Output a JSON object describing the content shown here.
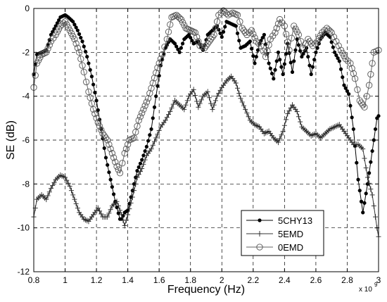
{
  "chart_data": {
    "type": "line",
    "xlabel": "Frequency (Hz)",
    "ylabel": "SE (dB)",
    "x_exponent_label": "x 10",
    "x_exponent_power": "9",
    "xlim": [
      0.8,
      3.0
    ],
    "ylim": [
      -12,
      0
    ],
    "x_scale": 1000000000.0,
    "grid": true,
    "legend_position": "bottom-right",
    "x_ticks": [
      "0.8",
      "1",
      "1.2",
      "1.4",
      "1.6",
      "1.8",
      "2",
      "2.2",
      "2.4",
      "2.6",
      "2.8",
      "3"
    ],
    "y_ticks": [
      "0",
      "-2",
      "-4",
      "-6",
      "-8",
      "-10",
      "-12"
    ],
    "series": [
      {
        "name": "5CHY13",
        "marker": "dot",
        "x": [
          0.8,
          0.82,
          0.85,
          0.88,
          0.91,
          0.94,
          0.97,
          1.0,
          1.02,
          1.05,
          1.08,
          1.11,
          1.14,
          1.17,
          1.2,
          1.23,
          1.26,
          1.29,
          1.32,
          1.35,
          1.36,
          1.38,
          1.4,
          1.43,
          1.46,
          1.49,
          1.52,
          1.55,
          1.58,
          1.61,
          1.64,
          1.67,
          1.7,
          1.73,
          1.76,
          1.79,
          1.82,
          1.85,
          1.88,
          1.91,
          1.94,
          1.97,
          2.0,
          2.03,
          2.06,
          2.09,
          2.12,
          2.15,
          2.18,
          2.21,
          2.24,
          2.27,
          2.3,
          2.33,
          2.36,
          2.39,
          2.42,
          2.45,
          2.48,
          2.51,
          2.54,
          2.57,
          2.6,
          2.63,
          2.66,
          2.69,
          2.72,
          2.75,
          2.78,
          2.81,
          2.84,
          2.87,
          2.9,
          2.93,
          2.96,
          2.99,
          3.0
        ],
        "y": [
          -3.0,
          -2.1,
          -2.0,
          -1.9,
          -1.2,
          -0.8,
          -0.4,
          -0.3,
          -0.4,
          -0.6,
          -1.0,
          -1.5,
          -2.2,
          -3.1,
          -4.2,
          -5.5,
          -6.8,
          -7.8,
          -8.8,
          -9.6,
          -9.6,
          -9.3,
          -9.2,
          -8.3,
          -7.4,
          -6.9,
          -6.3,
          -5.5,
          -4.0,
          -2.6,
          -1.8,
          -1.4,
          -1.6,
          -2.0,
          -1.4,
          -1.2,
          -1.6,
          -1.5,
          -1.9,
          -1.2,
          -1.0,
          -0.8,
          -1.3,
          -0.6,
          -0.7,
          -0.8,
          -1.8,
          -1.7,
          -1.5,
          -2.5,
          -1.6,
          -1.2,
          -2.5,
          -3.2,
          -2.0,
          -3.0,
          -1.6,
          -2.9,
          -1.4,
          -2.2,
          -1.8,
          -3.0,
          -2.0,
          -1.4,
          -1.1,
          -1.3,
          -2.0,
          -2.4,
          -3.5,
          -3.9,
          -5.5,
          -7.8,
          -9.3,
          -8.0,
          -6.5,
          -5.0,
          -4.9
        ]
      },
      {
        "name": "5EMD",
        "marker": "plus",
        "x": [
          0.8,
          0.82,
          0.85,
          0.88,
          0.91,
          0.94,
          0.97,
          1.0,
          1.03,
          1.06,
          1.09,
          1.12,
          1.15,
          1.18,
          1.21,
          1.24,
          1.27,
          1.3,
          1.33,
          1.36,
          1.38,
          1.4,
          1.43,
          1.46,
          1.49,
          1.52,
          1.55,
          1.58,
          1.61,
          1.64,
          1.67,
          1.7,
          1.73,
          1.76,
          1.79,
          1.82,
          1.85,
          1.88,
          1.91,
          1.94,
          1.97,
          2.0,
          2.03,
          2.06,
          2.09,
          2.12,
          2.15,
          2.18,
          2.21,
          2.24,
          2.27,
          2.3,
          2.33,
          2.36,
          2.39,
          2.42,
          2.45,
          2.48,
          2.51,
          2.54,
          2.57,
          2.6,
          2.63,
          2.66,
          2.69,
          2.72,
          2.75,
          2.78,
          2.81,
          2.84,
          2.87,
          2.9,
          2.93,
          2.96,
          2.99,
          3.0
        ],
        "y": [
          -9.5,
          -8.7,
          -8.5,
          -8.7,
          -8.2,
          -7.8,
          -7.6,
          -7.7,
          -8.1,
          -8.7,
          -9.3,
          -9.6,
          -9.7,
          -9.4,
          -9.1,
          -9.5,
          -9.5,
          -9.0,
          -8.8,
          -9.4,
          -9.9,
          -9.4,
          -8.6,
          -7.7,
          -7.3,
          -6.7,
          -6.4,
          -5.9,
          -5.4,
          -5.1,
          -4.7,
          -4.2,
          -4.4,
          -4.6,
          -4.0,
          -3.7,
          -4.5,
          -4.0,
          -3.8,
          -4.6,
          -4.0,
          -3.6,
          -3.3,
          -3.1,
          -3.4,
          -4.1,
          -4.6,
          -5.1,
          -5.3,
          -5.4,
          -5.7,
          -5.6,
          -5.9,
          -6.1,
          -5.6,
          -4.8,
          -4.4,
          -4.7,
          -5.4,
          -5.6,
          -5.8,
          -5.7,
          -5.9,
          -5.7,
          -5.5,
          -5.4,
          -5.3,
          -5.6,
          -5.9,
          -6.2,
          -6.2,
          -6.4,
          -7.7,
          -8.5,
          -10.0,
          -10.4
        ]
      },
      {
        "name": "0EMD",
        "marker": "circle",
        "x": [
          0.8,
          0.82,
          0.85,
          0.88,
          0.91,
          0.94,
          0.97,
          1.0,
          1.03,
          1.06,
          1.09,
          1.12,
          1.15,
          1.18,
          1.21,
          1.24,
          1.27,
          1.3,
          1.33,
          1.35,
          1.38,
          1.41,
          1.44,
          1.47,
          1.5,
          1.53,
          1.56,
          1.59,
          1.62,
          1.65,
          1.68,
          1.71,
          1.74,
          1.77,
          1.8,
          1.83,
          1.86,
          1.89,
          1.92,
          1.95,
          1.98,
          2.01,
          2.04,
          2.07,
          2.1,
          2.13,
          2.16,
          2.19,
          2.22,
          2.25,
          2.28,
          2.31,
          2.34,
          2.37,
          2.4,
          2.43,
          2.46,
          2.49,
          2.52,
          2.55,
          2.58,
          2.61,
          2.64,
          2.67,
          2.7,
          2.73,
          2.76,
          2.79,
          2.82,
          2.85,
          2.88,
          2.91,
          2.94,
          2.97,
          3.0
        ],
        "y": [
          -3.6,
          -2.5,
          -2.1,
          -2.0,
          -1.5,
          -1.2,
          -0.8,
          -0.6,
          -1.0,
          -1.4,
          -2.0,
          -2.9,
          -3.8,
          -4.6,
          -5.2,
          -5.7,
          -6.0,
          -6.6,
          -7.2,
          -7.5,
          -6.6,
          -6.0,
          -5.9,
          -5.1,
          -4.6,
          -4.1,
          -3.4,
          -2.7,
          -2.1,
          -1.4,
          -0.4,
          -0.3,
          -0.5,
          -0.9,
          -1.0,
          -1.1,
          -1.7,
          -1.8,
          -1.5,
          -1.2,
          -0.3,
          -0.1,
          -0.3,
          -0.2,
          -0.3,
          -0.9,
          -1.2,
          -1.0,
          -1.5,
          -1.7,
          -2.2,
          -1.4,
          -1.1,
          -0.5,
          -0.8,
          -1.9,
          -0.8,
          -1.2,
          -1.8,
          -1.4,
          -1.7,
          -1.5,
          -1.1,
          -0.9,
          -1.1,
          -1.5,
          -1.9,
          -2.3,
          -2.5,
          -3.2,
          -4.2,
          -4.5,
          -3.5,
          -2.0,
          -1.9
        ]
      }
    ]
  }
}
